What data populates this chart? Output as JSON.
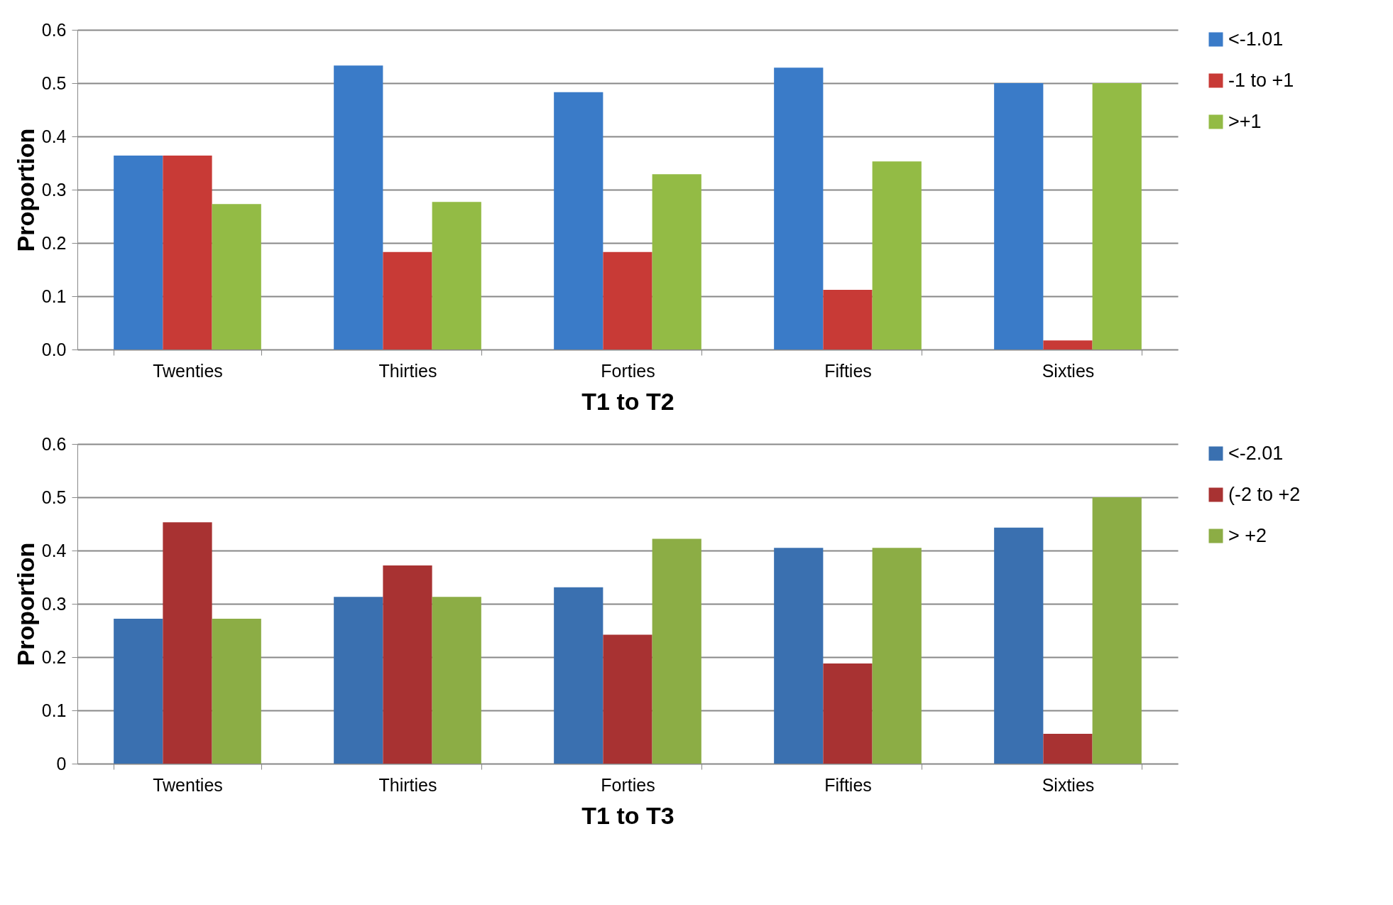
{
  "chart_data": [
    {
      "type": "bar",
      "xlabel": "T1 to T2",
      "ylabel": "Proportion",
      "categories": [
        "Twenties",
        "Thirties",
        "Forties",
        "Fifties",
        "Sixties"
      ],
      "ylim": [
        0,
        0.6
      ],
      "yticks": [
        {
          "value": 0,
          "label": "0.0"
        },
        0.1,
        0.2,
        0.3,
        0.4,
        0.5,
        0.6
      ],
      "grid": "y",
      "legend": "right",
      "series": [
        {
          "name": "<-1.01",
          "color": "#3a7bc8",
          "values": [
            0.364,
            0.533,
            0.483,
            0.529,
            0.5
          ]
        },
        {
          "name": "-1 to +1",
          "color": "#c83a36",
          "values": [
            0.364,
            0.183,
            0.183,
            0.112,
            0.017
          ]
        },
        {
          "name": ">+1",
          "color": "#93bb45",
          "values": [
            0.273,
            0.277,
            0.329,
            0.353,
            0.5
          ]
        }
      ]
    },
    {
      "type": "bar",
      "xlabel": "T1 to T3",
      "ylabel": "Proportion",
      "categories": [
        "Twenties",
        "Thirties",
        "Forties",
        "Fifties",
        "Sixties"
      ],
      "ylim": [
        0,
        0.6
      ],
      "yticks": [
        0,
        0.1,
        0.2,
        0.3,
        0.4,
        0.5,
        0.6
      ],
      "grid": "y",
      "legend": "right",
      "series": [
        {
          "name": "<-2.01",
          "color": "#3a70b0",
          "values": [
            0.272,
            0.313,
            0.331,
            0.405,
            0.443
          ]
        },
        {
          "name": "(-2 to +2",
          "color": "#a83232",
          "values": [
            0.453,
            0.372,
            0.242,
            0.188,
            0.056
          ]
        },
        {
          "name": "> +2",
          "color": "#8cad45",
          "values": [
            0.272,
            0.313,
            0.422,
            0.405,
            0.5
          ]
        }
      ]
    }
  ]
}
